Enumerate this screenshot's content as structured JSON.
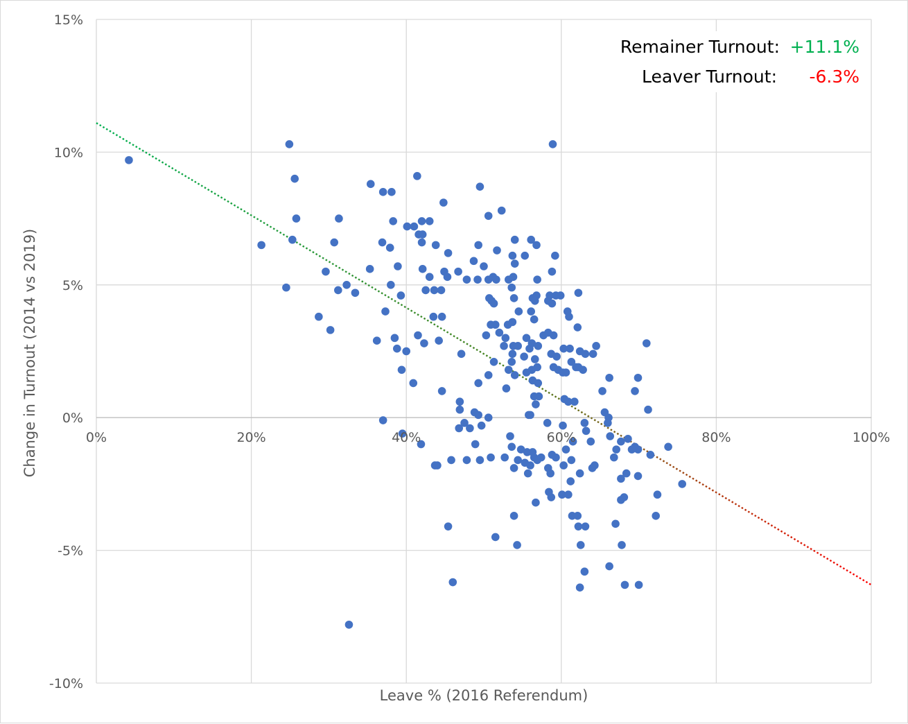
{
  "chart_data": {
    "type": "scatter",
    "title": "",
    "xlabel": "Leave % (2016 Referendum)",
    "ylabel": "Change in Turnout (2014 vs 2019)",
    "xlim": [
      0,
      100
    ],
    "ylim": [
      -10,
      15
    ],
    "x_ticks": [
      "0%",
      "20%",
      "40%",
      "60%",
      "80%",
      "100%"
    ],
    "y_ticks": [
      "-10%",
      "-5%",
      "0%",
      "5%",
      "10%",
      "15%"
    ],
    "grid": true,
    "legend": "none",
    "point_color": "#4472c4",
    "trendline": {
      "x": [
        0,
        100
      ],
      "y": [
        11.1,
        -6.3
      ],
      "start_color": "#00b050",
      "end_color": "#ff0000",
      "style": "dotted"
    },
    "annotations": [
      {
        "label": "Remainer Turnout:",
        "value": "+11.1%",
        "value_color": "#00b050"
      },
      {
        "label": "Leaver Turnout:",
        "value": "-6.3%",
        "value_color": "#ff0000"
      }
    ],
    "points": [
      [
        4.2,
        9.7
      ],
      [
        24.9,
        10.3
      ],
      [
        25.6,
        9.0
      ],
      [
        25.8,
        7.5
      ],
      [
        25.3,
        6.7
      ],
      [
        21.3,
        6.5
      ],
      [
        24.5,
        4.9
      ],
      [
        29.6,
        5.5
      ],
      [
        30.7,
        6.6
      ],
      [
        31.3,
        7.5
      ],
      [
        31.2,
        4.8
      ],
      [
        32.3,
        5.0
      ],
      [
        33.4,
        4.7
      ],
      [
        28.7,
        3.8
      ],
      [
        30.2,
        3.3
      ],
      [
        35.4,
        8.8
      ],
      [
        37.0,
        8.5
      ],
      [
        38.1,
        8.5
      ],
      [
        36.9,
        6.6
      ],
      [
        37.9,
        6.4
      ],
      [
        38.3,
        7.4
      ],
      [
        38.9,
        5.7
      ],
      [
        35.3,
        5.6
      ],
      [
        38.0,
        5.0
      ],
      [
        39.3,
        4.6
      ],
      [
        37.3,
        4.0
      ],
      [
        36.2,
        2.9
      ],
      [
        38.5,
        3.0
      ],
      [
        38.8,
        2.6
      ],
      [
        40.0,
        2.5
      ],
      [
        39.4,
        1.8
      ],
      [
        40.9,
        1.3
      ],
      [
        41.4,
        9.1
      ],
      [
        40.1,
        7.2
      ],
      [
        41.0,
        7.2
      ],
      [
        42.0,
        7.4
      ],
      [
        43.0,
        7.4
      ],
      [
        41.6,
        6.9
      ],
      [
        42.1,
        6.9
      ],
      [
        42.0,
        6.6
      ],
      [
        43.8,
        6.5
      ],
      [
        45.4,
        6.2
      ],
      [
        44.8,
        8.1
      ],
      [
        42.1,
        5.6
      ],
      [
        43.0,
        5.3
      ],
      [
        44.9,
        5.5
      ],
      [
        45.3,
        5.3
      ],
      [
        42.5,
        4.8
      ],
      [
        43.6,
        4.8
      ],
      [
        44.5,
        4.8
      ],
      [
        43.5,
        3.8
      ],
      [
        44.6,
        3.8
      ],
      [
        41.5,
        3.1
      ],
      [
        42.3,
        2.8
      ],
      [
        44.2,
        2.9
      ],
      [
        44.6,
        1.0
      ],
      [
        37.0,
        -0.1
      ],
      [
        39.5,
        -0.6
      ],
      [
        41.9,
        -1.0
      ],
      [
        43.7,
        -1.8
      ],
      [
        44.0,
        -1.8
      ],
      [
        45.8,
        -1.6
      ],
      [
        45.4,
        -4.1
      ],
      [
        46.0,
        -6.2
      ],
      [
        32.6,
        -7.8
      ],
      [
        46.7,
        5.5
      ],
      [
        47.8,
        5.2
      ],
      [
        48.7,
        5.9
      ],
      [
        49.2,
        5.2
      ],
      [
        49.5,
        8.7
      ],
      [
        49.3,
        6.5
      ],
      [
        50.6,
        7.6
      ],
      [
        52.3,
        7.8
      ],
      [
        51.7,
        6.3
      ],
      [
        50.0,
        5.7
      ],
      [
        50.6,
        5.2
      ],
      [
        51.2,
        5.3
      ],
      [
        51.6,
        5.2
      ],
      [
        50.7,
        4.5
      ],
      [
        51.0,
        4.4
      ],
      [
        51.3,
        4.3
      ],
      [
        50.9,
        3.5
      ],
      [
        51.5,
        3.5
      ],
      [
        50.3,
        3.1
      ],
      [
        52.0,
        3.2
      ],
      [
        51.3,
        2.1
      ],
      [
        52.8,
        3.0
      ],
      [
        52.6,
        2.7
      ],
      [
        49.3,
        1.3
      ],
      [
        50.6,
        1.6
      ],
      [
        47.1,
        2.4
      ],
      [
        46.9,
        0.6
      ],
      [
        46.9,
        0.3
      ],
      [
        48.8,
        0.2
      ],
      [
        49.3,
        0.1
      ],
      [
        50.6,
        0.0
      ],
      [
        47.5,
        -0.2
      ],
      [
        48.2,
        -0.4
      ],
      [
        49.7,
        -0.3
      ],
      [
        46.8,
        -0.4
      ],
      [
        48.9,
        -1.0
      ],
      [
        47.8,
        -1.6
      ],
      [
        49.5,
        -1.6
      ],
      [
        50.9,
        -1.5
      ],
      [
        51.5,
        -4.5
      ],
      [
        52.7,
        -1.5
      ],
      [
        53.4,
        -0.7
      ],
      [
        53.6,
        -1.1
      ],
      [
        53.9,
        -1.9
      ],
      [
        54.4,
        -1.6
      ],
      [
        53.9,
        -3.7
      ],
      [
        54.3,
        -4.8
      ],
      [
        53.7,
        6.1
      ],
      [
        54.0,
        6.7
      ],
      [
        54.0,
        5.8
      ],
      [
        53.8,
        5.3
      ],
      [
        53.2,
        5.2
      ],
      [
        53.6,
        4.9
      ],
      [
        53.9,
        4.5
      ],
      [
        54.5,
        4.0
      ],
      [
        53.1,
        3.5
      ],
      [
        53.7,
        3.6
      ],
      [
        53.8,
        2.7
      ],
      [
        54.4,
        2.7
      ],
      [
        53.2,
        1.8
      ],
      [
        54.0,
        1.6
      ],
      [
        53.6,
        2.1
      ],
      [
        53.7,
        2.4
      ],
      [
        52.9,
        1.1
      ],
      [
        55.3,
        6.1
      ],
      [
        56.8,
        6.5
      ],
      [
        56.9,
        5.2
      ],
      [
        56.1,
        6.7
      ],
      [
        56.3,
        4.5
      ],
      [
        56.8,
        4.6
      ],
      [
        56.6,
        4.4
      ],
      [
        56.1,
        4.0
      ],
      [
        56.5,
        3.7
      ],
      [
        55.5,
        3.0
      ],
      [
        56.2,
        2.8
      ],
      [
        57.0,
        2.7
      ],
      [
        55.9,
        2.6
      ],
      [
        56.6,
        2.2
      ],
      [
        56.9,
        1.9
      ],
      [
        55.2,
        2.3
      ],
      [
        55.5,
        1.7
      ],
      [
        56.2,
        1.8
      ],
      [
        56.3,
        1.4
      ],
      [
        57.0,
        1.3
      ],
      [
        57.1,
        0.8
      ],
      [
        56.7,
        0.5
      ],
      [
        56.5,
        0.8
      ],
      [
        55.8,
        0.1
      ],
      [
        56.0,
        0.1
      ],
      [
        54.8,
        -1.2
      ],
      [
        55.3,
        -1.7
      ],
      [
        55.6,
        -1.3
      ],
      [
        55.7,
        -2.1
      ],
      [
        56.0,
        -1.8
      ],
      [
        56.5,
        -1.5
      ],
      [
        56.9,
        -1.6
      ],
      [
        57.4,
        -1.5
      ],
      [
        56.3,
        -1.3
      ],
      [
        56.7,
        -3.2
      ],
      [
        58.9,
        10.3
      ],
      [
        59.2,
        6.1
      ],
      [
        58.8,
        5.5
      ],
      [
        58.5,
        4.6
      ],
      [
        59.3,
        4.6
      ],
      [
        58.3,
        4.4
      ],
      [
        58.8,
        4.3
      ],
      [
        59.9,
        4.6
      ],
      [
        60.8,
        4.0
      ],
      [
        62.2,
        4.7
      ],
      [
        61.0,
        3.8
      ],
      [
        62.1,
        3.4
      ],
      [
        57.7,
        3.1
      ],
      [
        58.3,
        3.2
      ],
      [
        59.0,
        3.1
      ],
      [
        60.3,
        2.6
      ],
      [
        61.1,
        2.6
      ],
      [
        62.4,
        2.5
      ],
      [
        63.1,
        2.4
      ],
      [
        64.1,
        2.4
      ],
      [
        64.5,
        2.7
      ],
      [
        58.7,
        2.4
      ],
      [
        59.4,
        2.3
      ],
      [
        59.0,
        1.9
      ],
      [
        59.6,
        1.8
      ],
      [
        60.2,
        1.7
      ],
      [
        60.6,
        1.7
      ],
      [
        61.3,
        2.1
      ],
      [
        61.9,
        1.9
      ],
      [
        62.2,
        1.9
      ],
      [
        62.8,
        1.8
      ],
      [
        60.4,
        0.7
      ],
      [
        60.9,
        0.6
      ],
      [
        61.7,
        0.6
      ],
      [
        58.2,
        -0.2
      ],
      [
        60.2,
        -0.3
      ],
      [
        61.5,
        -0.9
      ],
      [
        63.0,
        -0.2
      ],
      [
        63.2,
        -0.5
      ],
      [
        63.8,
        -0.9
      ],
      [
        58.3,
        -1.9
      ],
      [
        58.8,
        -1.4
      ],
      [
        59.3,
        -1.5
      ],
      [
        60.3,
        -1.8
      ],
      [
        60.6,
        -1.2
      ],
      [
        61.3,
        -1.6
      ],
      [
        58.6,
        -2.1
      ],
      [
        60.1,
        -2.9
      ],
      [
        60.9,
        -2.9
      ],
      [
        61.2,
        -2.4
      ],
      [
        62.4,
        -2.1
      ],
      [
        58.4,
        -2.8
      ],
      [
        58.7,
        -3.0
      ],
      [
        61.4,
        -3.7
      ],
      [
        62.1,
        -3.7
      ],
      [
        62.2,
        -4.1
      ],
      [
        63.1,
        -4.1
      ],
      [
        62.5,
        -4.8
      ],
      [
        63.0,
        -5.8
      ],
      [
        62.4,
        -6.4
      ],
      [
        65.3,
        1.0
      ],
      [
        66.2,
        1.5
      ],
      [
        65.6,
        0.2
      ],
      [
        66.1,
        0.0
      ],
      [
        66.0,
        -0.2
      ],
      [
        66.3,
        -0.7
      ],
      [
        67.1,
        -1.2
      ],
      [
        66.8,
        -1.5
      ],
      [
        64.3,
        -1.8
      ],
      [
        64.0,
        -1.9
      ],
      [
        67.7,
        -0.9
      ],
      [
        68.6,
        -0.8
      ],
      [
        69.1,
        -1.2
      ],
      [
        69.5,
        -1.1
      ],
      [
        69.9,
        -1.2
      ],
      [
        69.5,
        1.0
      ],
      [
        69.9,
        1.5
      ],
      [
        71.0,
        2.8
      ],
      [
        71.2,
        0.3
      ],
      [
        73.8,
        -1.1
      ],
      [
        71.5,
        -1.4
      ],
      [
        67.7,
        -2.3
      ],
      [
        68.4,
        -2.1
      ],
      [
        69.9,
        -2.2
      ],
      [
        67.7,
        -3.1
      ],
      [
        68.1,
        -3.0
      ],
      [
        72.4,
        -2.9
      ],
      [
        75.6,
        -2.5
      ],
      [
        67.0,
        -4.0
      ],
      [
        67.8,
        -4.8
      ],
      [
        66.2,
        -5.6
      ],
      [
        68.2,
        -6.3
      ],
      [
        70.0,
        -6.3
      ],
      [
        72.2,
        -3.7
      ]
    ]
  }
}
